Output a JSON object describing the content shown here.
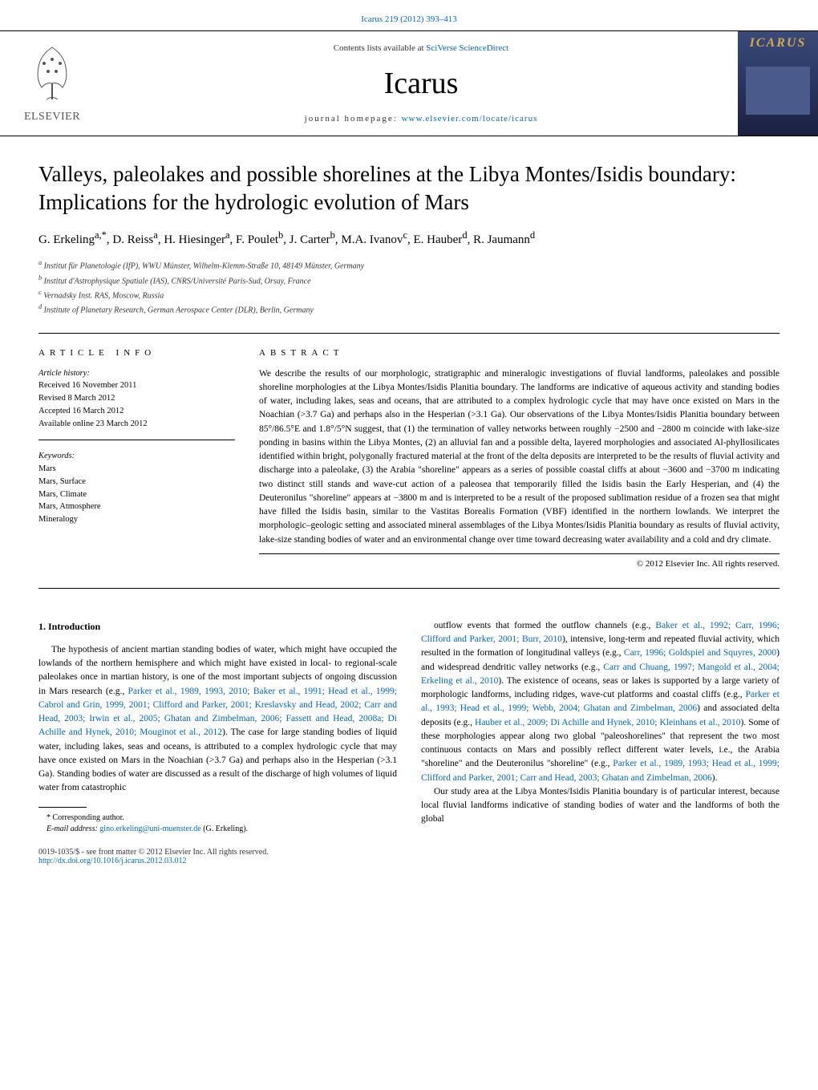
{
  "citation": "Icarus 219 (2012) 393–413",
  "banner": {
    "contents_prefix": "Contents lists available at ",
    "contents_link": "SciVerse ScienceDirect",
    "journal": "Icarus",
    "homepage_prefix": "journal homepage: ",
    "homepage_link": "www.elsevier.com/locate/icarus",
    "publisher_label": "ELSEVIER",
    "cover_title": "ICARUS"
  },
  "title": "Valleys, paleolakes and possible shorelines at the Libya Montes/Isidis boundary: Implications for the hydrologic evolution of Mars",
  "authors_html": "G. Erkeling<sup>a,*</sup>, D. Reiss<sup>a</sup>, H. Hiesinger<sup>a</sup>, F. Poulet<sup>b</sup>, J. Carter<sup>b</sup>, M.A. Ivanov<sup>c</sup>, E. Hauber<sup>d</sup>, R. Jaumann<sup>d</sup>",
  "affiliations": [
    "a Institut für Planetologie (IfP), WWU Münster, Wilhelm-Klemm-Straße 10, 48149 Münster, Germany",
    "b Institut d'Astrophysique Spatiale (IAS), CNRS/Université Paris-Sud, Orsay, France",
    "c Vernadsky Inst. RAS, Moscow, Russia",
    "d Institute of Planetary Research, German Aerospace Center (DLR), Berlin, Germany"
  ],
  "info": {
    "heading": "ARTICLE INFO",
    "history_label": "Article history:",
    "history": [
      "Received 16 November 2011",
      "Revised 8 March 2012",
      "Accepted 16 March 2012",
      "Available online 23 March 2012"
    ],
    "keywords_label": "Keywords:",
    "keywords": [
      "Mars",
      "Mars, Surface",
      "Mars, Climate",
      "Mars, Atmosphere",
      "Mineralogy"
    ]
  },
  "abstract": {
    "heading": "ABSTRACT",
    "text": "We describe the results of our morphologic, stratigraphic and mineralogic investigations of fluvial landforms, paleolakes and possible shoreline morphologies at the Libya Montes/Isidis Planitia boundary. The landforms are indicative of aqueous activity and standing bodies of water, including lakes, seas and oceans, that are attributed to a complex hydrologic cycle that may have once existed on Mars in the Noachian (>3.7 Ga) and perhaps also in the Hesperian (>3.1 Ga). Our observations of the Libya Montes/Isidis Planitia boundary between 85°/86.5°E and 1.8°/5°N suggest, that (1) the termination of valley networks between roughly −2500 and −2800 m coincide with lake-size ponding in basins within the Libya Montes, (2) an alluvial fan and a possible delta, layered morphologies and associated Al-phyllosilicates identified within bright, polygonally fractured material at the front of the delta deposits are interpreted to be the results of fluvial activity and discharge into a paleolake, (3) the Arabia \"shoreline\" appears as a series of possible coastal cliffs at about −3600 and −3700 m indicating two distinct still stands and wave-cut action of a paleosea that temporarily filled the Isidis basin the Early Hesperian, and (4) the Deuteronilus \"shoreline\" appears at −3800 m and is interpreted to be a result of the proposed sublimation residue of a frozen sea that might have filled the Isidis basin, similar to the Vastitas Borealis Formation (VBF) identified in the northern lowlands. We interpret the morphologic–geologic setting and associated mineral assemblages of the Libya Montes/Isidis Planitia boundary as results of fluvial activity, lake-size standing bodies of water and an environmental change over time toward decreasing water availability and a cold and dry climate.",
    "copyright": "© 2012 Elsevier Inc. All rights reserved."
  },
  "section1": {
    "heading": "1. Introduction",
    "col1_p1": "The hypothesis of ancient martian standing bodies of water, which might have occupied the lowlands of the northern hemisphere and which might have existed in local- to regional-scale paleolakes once in martian history, is one of the most important subjects of ongoing discussion in Mars research (e.g., Parker et al., 1989, 1993, 2010; Baker et al., 1991; Head et al., 1999; Cabrol and Grin, 1999, 2001; Clifford and Parker, 2001; Kreslavsky and Head, 2002; Carr and Head, 2003; Irwin et al., 2005; Ghatan and Zimbelman, 2006; Fassett and Head, 2008a; Di Achille and Hynek, 2010; Mouginot et al., 2012). The case for large standing bodies of liquid water, including lakes, seas and oceans, is attributed to a complex hydrologic cycle that may have once existed on Mars in the Noachian (>3.7 Ga) and perhaps also in the Hesperian (>3.1 Ga). Standing bodies of water are discussed as a result of the discharge of high volumes of liquid water from catastrophic",
    "col2_p1": "outflow events that formed the outflow channels (e.g., Baker et al., 1992; Carr, 1996; Clifford and Parker, 2001; Burr, 2010), intensive, long-term and repeated fluvial activity, which resulted in the formation of longitudinal valleys (e.g., Carr, 1996; Goldspiel and Squyres, 2000) and widespread dendritic valley networks (e.g., Carr and Chuang, 1997; Mangold et al., 2004; Erkeling et al., 2010). The existence of oceans, seas or lakes is supported by a large variety of morphologic landforms, including ridges, wave-cut platforms and coastal cliffs (e.g., Parker et al., 1993; Head et al., 1999; Webb, 2004; Ghatan and Zimbelman, 2006) and associated delta deposits (e.g., Hauber et al., 2009; Di Achille and Hynek, 2010; Kleinhans et al., 2010). Some of these morphologies appear along two global \"paleoshorelines\" that represent the two most continuous contacts on Mars and possibly reflect different water levels, i.e., the Arabia \"shoreline\" and the Deuteronilus \"shoreline\" (e.g., Parker et al., 1989, 1993; Head et al., 1999; Clifford and Parker, 2001; Carr and Head, 2003; Ghatan and Zimbelman, 2006).",
    "col2_p2": "Our study area at the Libya Montes/Isidis Planitia boundary is of particular interest, because local fluvial landforms indicative of standing bodies of water and the landforms of both the global"
  },
  "footnote": {
    "corr": "* Corresponding author.",
    "email_label": "E-mail address: ",
    "email": "gino.erkeling@uni-muenster.de",
    "email_suffix": " (G. Erkeling)."
  },
  "footer": {
    "line1": "0019-1035/$ - see front matter © 2012 Elsevier Inc. All rights reserved.",
    "doi": "http://dx.doi.org/10.1016/j.icarus.2012.03.012"
  },
  "colors": {
    "link": "#0066cc",
    "text": "#000000",
    "cover_bg_top": "#3a4a7a",
    "cover_bg_bottom": "#1a2040",
    "cover_gold": "#d4a94a"
  }
}
